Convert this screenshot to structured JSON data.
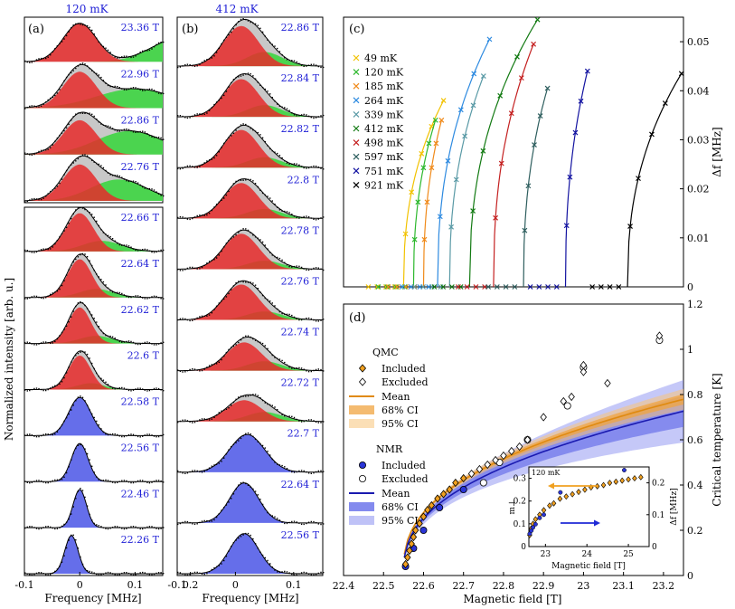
{
  "figure": {
    "ylabel_shared": "Normalized intensity [arb. u.]",
    "colors": {
      "red": "#e62a2a",
      "green": "#35d63a",
      "blue": "#4a55e6",
      "gray": "#c8c8c8",
      "fieldText": "#1f1fd6"
    }
  },
  "chart_data": [
    {
      "id": "a",
      "type": "line",
      "label": "(a)",
      "title": "120 mK",
      "xlabel": "Frequency [MHz]",
      "xlim": [
        -0.1,
        0.15
      ],
      "xticks": [
        "-0.1",
        "0",
        "0.1",
        "0.2"
      ],
      "stacked_fields": [
        "23.36 T",
        "22.96 T",
        "22.86 T",
        "22.76 T",
        "22.66 T",
        "22.64 T",
        "22.62 T",
        "22.6 T",
        "22.58 T",
        "22.56 T",
        "22.46 T",
        "22.26 T"
      ],
      "components": [
        {
          "field": "23.36 T",
          "red": {
            "center": 0.0,
            "width": 0.03,
            "amp": 0.9
          },
          "green": {
            "center": 0.18,
            "width": 0.05,
            "amp": 0.55
          }
        },
        {
          "field": "22.96 T",
          "red": {
            "center": 0.0,
            "width": 0.03,
            "amp": 0.85
          },
          "green": {
            "center": 0.1,
            "width": 0.07,
            "amp": 0.45
          }
        },
        {
          "field": "22.86 T",
          "red": {
            "center": 0.0,
            "width": 0.03,
            "amp": 0.8
          },
          "green": {
            "center": 0.09,
            "width": 0.06,
            "amp": 0.55
          }
        },
        {
          "field": "22.76 T",
          "red": {
            "center": 0.0,
            "width": 0.03,
            "amp": 0.85
          },
          "green": {
            "center": 0.07,
            "width": 0.05,
            "amp": 0.5
          }
        },
        {
          "field": "22.66 T",
          "red": {
            "center": 0.0,
            "width": 0.025,
            "amp": 0.9
          },
          "green": {
            "center": 0.04,
            "width": 0.035,
            "amp": 0.25
          }
        },
        {
          "field": "22.64 T",
          "red": {
            "center": 0.0,
            "width": 0.022,
            "amp": 0.9
          },
          "green": {
            "center": 0.03,
            "width": 0.03,
            "amp": 0.2
          }
        },
        {
          "field": "22.62 T",
          "red": {
            "center": 0.0,
            "width": 0.02,
            "amp": 0.85
          },
          "green": {
            "center": 0.03,
            "width": 0.03,
            "amp": 0.18
          }
        },
        {
          "field": "22.6 T",
          "red": {
            "center": 0.0,
            "width": 0.02,
            "amp": 0.8
          },
          "green": {
            "center": 0.02,
            "width": 0.025,
            "amp": 0.15
          }
        },
        {
          "field": "22.58 T",
          "blue": {
            "center": 0.0,
            "width": 0.02,
            "amp": 0.9
          }
        },
        {
          "field": "22.56 T",
          "blue": {
            "center": 0.0,
            "width": 0.015,
            "amp": 0.9
          }
        },
        {
          "field": "22.46 T",
          "blue": {
            "center": 0.0,
            "width": 0.012,
            "amp": 0.9
          }
        },
        {
          "field": "22.26 T",
          "blue": {
            "center": -0.015,
            "width": 0.012,
            "amp": 0.9
          }
        }
      ]
    },
    {
      "id": "b",
      "type": "line",
      "label": "(b)",
      "title": "412 mK",
      "xlabel": "Frequency [MHz]",
      "xlim": [
        -0.1,
        0.15
      ],
      "xticks": [
        "-0.1",
        "0",
        "0.1"
      ],
      "stacked_fields": [
        "22.86 T",
        "22.84 T",
        "22.82 T",
        "22.8 T",
        "22.78 T",
        "22.76 T",
        "22.74 T",
        "22.72 T",
        "22.7 T",
        "22.64 T",
        "22.56 T"
      ],
      "components": [
        {
          "field": "22.86 T",
          "red": {
            "center": 0.01,
            "width": 0.03,
            "amp": 0.85
          },
          "green": {
            "center": 0.05,
            "width": 0.03,
            "amp": 0.3
          }
        },
        {
          "field": "22.84 T",
          "red": {
            "center": 0.01,
            "width": 0.03,
            "amp": 0.8
          },
          "green": {
            "center": 0.05,
            "width": 0.03,
            "amp": 0.25
          }
        },
        {
          "field": "22.82 T",
          "red": {
            "center": 0.01,
            "width": 0.03,
            "amp": 0.8
          },
          "green": {
            "center": 0.05,
            "width": 0.03,
            "amp": 0.22
          }
        },
        {
          "field": "22.8 T",
          "red": {
            "center": 0.01,
            "width": 0.03,
            "amp": 0.75
          },
          "green": {
            "center": 0.05,
            "width": 0.03,
            "amp": 0.2
          }
        },
        {
          "field": "22.78 T",
          "red": {
            "center": 0.01,
            "width": 0.03,
            "amp": 0.75
          },
          "green": {
            "center": 0.05,
            "width": 0.03,
            "amp": 0.18
          }
        },
        {
          "field": "22.76 T",
          "red": {
            "center": 0.01,
            "width": 0.03,
            "amp": 0.75
          },
          "green": {
            "center": 0.05,
            "width": 0.03,
            "amp": 0.18
          }
        },
        {
          "field": "22.74 T",
          "red": {
            "center": 0.015,
            "width": 0.03,
            "amp": 0.6
          },
          "green": {
            "center": 0.05,
            "width": 0.03,
            "amp": 0.2
          }
        },
        {
          "field": "22.72 T",
          "red": {
            "center": 0.015,
            "width": 0.03,
            "amp": 0.45
          },
          "green": {
            "center": 0.05,
            "width": 0.03,
            "amp": 0.2
          }
        },
        {
          "field": "22.7 T",
          "blue": {
            "center": 0.02,
            "width": 0.03,
            "amp": 0.8
          }
        },
        {
          "field": "22.64 T",
          "blue": {
            "center": 0.015,
            "width": 0.025,
            "amp": 0.85
          }
        },
        {
          "field": "22.56 T",
          "blue": {
            "center": 0.015,
            "width": 0.025,
            "amp": 0.85
          }
        }
      ]
    },
    {
      "id": "c",
      "type": "line",
      "label": "(c)",
      "xlim": [
        22.4,
        23.25
      ],
      "ylabel": "Δf [MHz]",
      "ylim": [
        0,
        0.055
      ],
      "yticks": [
        "0",
        "0.01",
        "0.02",
        "0.03",
        "0.04",
        "0.05"
      ],
      "series": [
        {
          "name": "49 mK",
          "color": "#f2c200",
          "onset": 22.55,
          "end": 22.65,
          "top": 0.038
        },
        {
          "name": "120 mK",
          "color": "#2db82d",
          "onset": 22.575,
          "end": 22.63,
          "top": 0.034
        },
        {
          "name": "185 mK",
          "color": "#f08a1a",
          "onset": 22.6,
          "end": 22.645,
          "top": 0.034
        },
        {
          "name": "264 mK",
          "color": "#2d8ae0",
          "onset": 22.635,
          "end": 22.765,
          "top": 0.0505
        },
        {
          "name": "339 mK",
          "color": "#5a9aa6",
          "onset": 22.665,
          "end": 22.75,
          "top": 0.043
        },
        {
          "name": "412 mK",
          "color": "#127a12",
          "onset": 22.715,
          "end": 22.885,
          "top": 0.0545
        },
        {
          "name": "498 mK",
          "color": "#c42020",
          "onset": 22.775,
          "end": 22.875,
          "top": 0.0495
        },
        {
          "name": "597 mK",
          "color": "#2e5e5e",
          "onset": 22.85,
          "end": 22.91,
          "top": 0.0405
        },
        {
          "name": "751 mK",
          "color": "#1212a0",
          "onset": 22.955,
          "end": 23.01,
          "top": 0.044
        },
        {
          "name": "921 mK",
          "color": "#000000",
          "onset": 23.11,
          "end": 23.245,
          "top": 0.0435
        }
      ]
    },
    {
      "id": "d",
      "type": "scatter",
      "label": "(d)",
      "xlabel": "Magnetic field [T]",
      "ylabel": "Critical temperature [K]",
      "xlim": [
        22.4,
        23.25
      ],
      "ylim": [
        0,
        1.2
      ],
      "xticks": [
        "22.4",
        "22.5",
        "22.6",
        "22.7",
        "22.8",
        "22.9",
        "23",
        "23.1",
        "23.2"
      ],
      "yticks": [
        "0",
        "0.2",
        "0.4",
        "0.6",
        "0.8",
        "1",
        "1.2"
      ],
      "legend": {
        "qmc_header": "QMC",
        "qmc_included": "Included",
        "qmc_excluded": "Excluded",
        "qmc_mean": "Mean",
        "qmc_ci68": "68% CI",
        "qmc_ci95": "95% CI",
        "nmr_header": "NMR",
        "nmr_included": "Included",
        "nmr_excluded": "Excluded",
        "nmr_mean": "Mean",
        "nmr_ci68": "68% CI",
        "nmr_ci95": "95% CI"
      },
      "qmc_points": [
        {
          "x": 22.555,
          "y": 0.05,
          "included": true
        },
        {
          "x": 22.56,
          "y": 0.08,
          "included": true
        },
        {
          "x": 22.565,
          "y": 0.11,
          "included": true
        },
        {
          "x": 22.57,
          "y": 0.14,
          "included": true
        },
        {
          "x": 22.575,
          "y": 0.17,
          "included": true
        },
        {
          "x": 22.58,
          "y": 0.2,
          "included": true
        },
        {
          "x": 22.59,
          "y": 0.23,
          "included": true
        },
        {
          "x": 22.6,
          "y": 0.26,
          "included": true
        },
        {
          "x": 22.61,
          "y": 0.29,
          "included": true
        },
        {
          "x": 22.62,
          "y": 0.31,
          "included": true
        },
        {
          "x": 22.635,
          "y": 0.34,
          "included": true
        },
        {
          "x": 22.65,
          "y": 0.36,
          "included": true
        },
        {
          "x": 22.665,
          "y": 0.38,
          "included": true
        },
        {
          "x": 22.68,
          "y": 0.41,
          "included": true
        },
        {
          "x": 22.7,
          "y": 0.43,
          "included": true
        },
        {
          "x": 22.72,
          "y": 0.45,
          "included": false
        },
        {
          "x": 22.74,
          "y": 0.47,
          "included": false
        },
        {
          "x": 22.76,
          "y": 0.49,
          "included": false
        },
        {
          "x": 22.78,
          "y": 0.51,
          "included": false
        },
        {
          "x": 22.8,
          "y": 0.53,
          "included": false
        },
        {
          "x": 22.82,
          "y": 0.55,
          "included": false
        },
        {
          "x": 22.84,
          "y": 0.57,
          "included": false
        },
        {
          "x": 22.86,
          "y": 0.6,
          "included": false
        },
        {
          "x": 22.9,
          "y": 0.7,
          "included": false
        },
        {
          "x": 22.95,
          "y": 0.77,
          "included": false
        },
        {
          "x": 22.97,
          "y": 0.79,
          "included": false
        },
        {
          "x": 23.0,
          "y": 0.9,
          "included": false
        },
        {
          "x": 23.0,
          "y": 0.93,
          "included": false
        },
        {
          "x": 23.06,
          "y": 0.85,
          "included": false
        },
        {
          "x": 23.19,
          "y": 1.06,
          "included": false
        }
      ],
      "nmr_points": [
        {
          "x": 22.555,
          "y": 0.04,
          "included": true
        },
        {
          "x": 22.575,
          "y": 0.12,
          "included": true
        },
        {
          "x": 22.6,
          "y": 0.2,
          "included": true
        },
        {
          "x": 22.64,
          "y": 0.3,
          "included": true
        },
        {
          "x": 22.7,
          "y": 0.38,
          "included": true
        },
        {
          "x": 22.75,
          "y": 0.41,
          "included": false
        },
        {
          "x": 22.79,
          "y": 0.5,
          "included": false
        },
        {
          "x": 22.86,
          "y": 0.6,
          "included": false
        },
        {
          "x": 22.96,
          "y": 0.75,
          "included": false
        },
        {
          "x": 23.0,
          "y": 0.92,
          "included": false
        },
        {
          "x": 23.19,
          "y": 1.04,
          "included": false
        }
      ]
    },
    {
      "id": "d-inset",
      "type": "scatter",
      "title": "120 mK",
      "xlabel": "Magnetic field [T]",
      "ylabel_left": "m⊥",
      "ylabel_right": "Δf [MHz]",
      "xlim": [
        22.6,
        25.5
      ],
      "xticks": [
        "23",
        "24",
        "25"
      ],
      "ylim_left": [
        0,
        0.35
      ],
      "yticks_left": [
        "0",
        "0.1",
        "0.2",
        "0.3"
      ],
      "ylim_right": [
        0,
        0.25
      ],
      "yticks_right": [
        "0",
        "0.1",
        "0.2"
      ],
      "mperp_points": [
        {
          "x": 22.62,
          "y": 0.05
        },
        {
          "x": 22.66,
          "y": 0.08
        },
        {
          "x": 22.7,
          "y": 0.1
        },
        {
          "x": 22.76,
          "y": 0.12
        },
        {
          "x": 22.86,
          "y": 0.14
        },
        {
          "x": 22.96,
          "y": 0.16
        },
        {
          "x": 23.1,
          "y": 0.18
        },
        {
          "x": 23.2,
          "y": 0.19
        },
        {
          "x": 23.35,
          "y": 0.21
        },
        {
          "x": 23.5,
          "y": 0.22
        },
        {
          "x": 23.65,
          "y": 0.23
        },
        {
          "x": 23.8,
          "y": 0.24
        },
        {
          "x": 23.95,
          "y": 0.25
        },
        {
          "x": 24.1,
          "y": 0.26
        },
        {
          "x": 24.25,
          "y": 0.265
        },
        {
          "x": 24.4,
          "y": 0.27
        },
        {
          "x": 24.55,
          "y": 0.28
        },
        {
          "x": 24.7,
          "y": 0.285
        },
        {
          "x": 24.85,
          "y": 0.29
        },
        {
          "x": 25.0,
          "y": 0.295
        },
        {
          "x": 25.15,
          "y": 0.3
        },
        {
          "x": 25.3,
          "y": 0.305
        }
      ],
      "df_points": [
        {
          "x": 22.62,
          "y": 0.04
        },
        {
          "x": 22.66,
          "y": 0.05
        },
        {
          "x": 22.7,
          "y": 0.06
        },
        {
          "x": 22.76,
          "y": 0.07
        },
        {
          "x": 22.86,
          "y": 0.09
        },
        {
          "x": 22.96,
          "y": 0.1
        },
        {
          "x": 23.36,
          "y": 0.17
        },
        {
          "x": 24.9,
          "y": 0.24
        }
      ]
    }
  ]
}
